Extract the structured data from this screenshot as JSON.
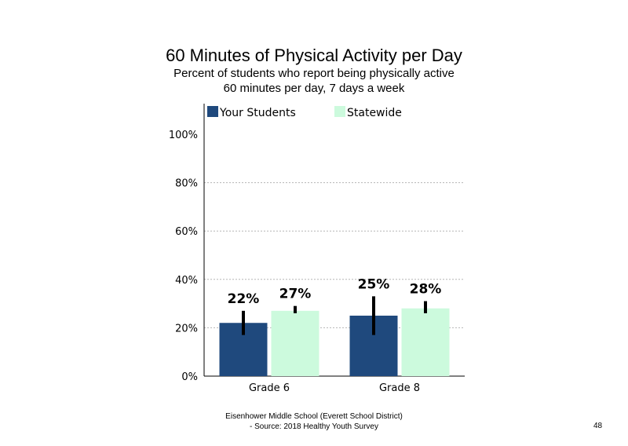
{
  "slide": {
    "title": "60 Minutes of Physical Activity per Day",
    "subtitle_line1": "Percent of students who report being physically active",
    "subtitle_line2": "60 minutes per day, 7 days a week",
    "footer_line1": "Eisenhower Middle School (Everett School District)",
    "footer_line2": "- Source: 2018 Healthy Youth Survey",
    "page_number": "48"
  },
  "chart_data": {
    "type": "bar",
    "title": "60 Minutes of Physical Activity per Day",
    "categories": [
      "Grade 6",
      "Grade 8"
    ],
    "series": [
      {
        "name": "Your Students",
        "color": "#1f497d",
        "values": [
          22,
          25
        ],
        "labels": [
          "22%",
          "25%"
        ],
        "error_low": [
          17,
          17
        ],
        "error_high": [
          27,
          33
        ]
      },
      {
        "name": "Statewide",
        "color": "#ccfadd",
        "values": [
          27,
          28
        ],
        "labels": [
          "27%",
          "28%"
        ],
        "error_low": [
          26,
          26
        ],
        "error_high": [
          29,
          31
        ]
      }
    ],
    "ylim": [
      0,
      100
    ],
    "yticks": [
      0,
      20,
      40,
      60,
      80,
      100
    ],
    "ytick_labels": [
      "0%",
      "20%",
      "40%",
      "60%",
      "80%",
      "100%"
    ],
    "grid": true,
    "legend_position": "top"
  }
}
